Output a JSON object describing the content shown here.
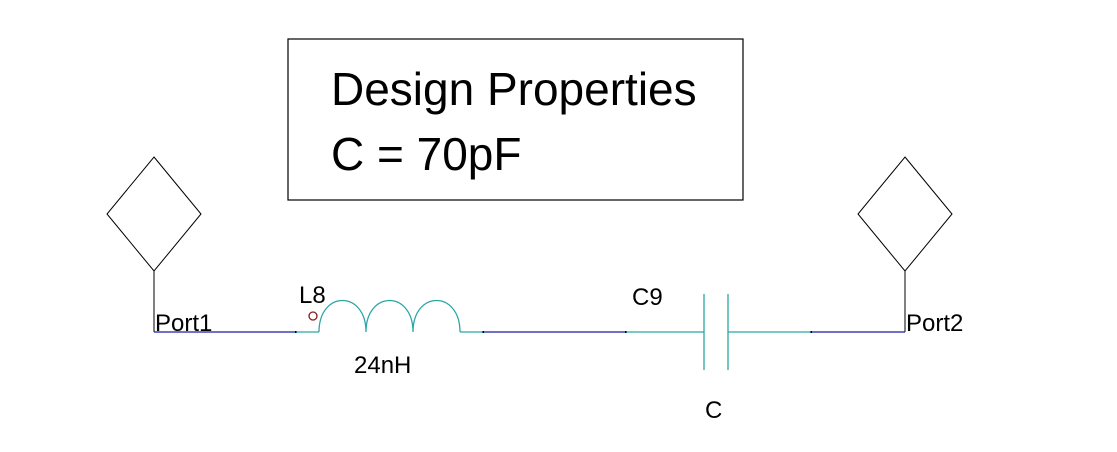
{
  "design_properties": {
    "title": "Design Properties",
    "line1": "C = 70pF"
  },
  "components": {
    "port1": {
      "label": "Port1"
    },
    "port2": {
      "label": "Port2"
    },
    "inductor": {
      "ref": "L8",
      "value": "24nH"
    },
    "capacitor": {
      "ref": "C9",
      "value": "C"
    }
  },
  "colors": {
    "wire": "#1a1aa0",
    "component": "#2aa6a6",
    "pin_marker": "#8b1a1a",
    "outline": "#000000"
  }
}
